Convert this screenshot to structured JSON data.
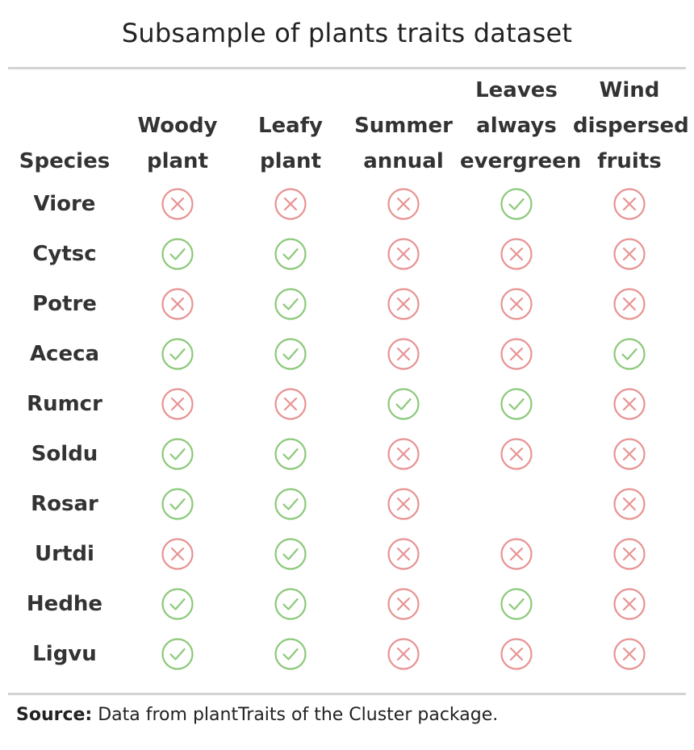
{
  "chart_data": {
    "type": "table",
    "title": "Subsample of plants traits dataset",
    "columns": [
      {
        "key": "species",
        "lines": [
          "Species"
        ]
      },
      {
        "key": "woody",
        "lines": [
          "Woody",
          "plant"
        ]
      },
      {
        "key": "leafy",
        "lines": [
          "Leafy",
          "plant"
        ]
      },
      {
        "key": "summer",
        "lines": [
          "Summer",
          "annual"
        ]
      },
      {
        "key": "evergreen",
        "lines": [
          "Leaves",
          "always",
          "evergreen"
        ]
      },
      {
        "key": "wind",
        "lines": [
          "Wind",
          "dispersed",
          "fruits"
        ]
      }
    ],
    "rows": [
      {
        "species": "Viore",
        "values": [
          false,
          false,
          false,
          true,
          false
        ]
      },
      {
        "species": "Cytsc",
        "values": [
          true,
          true,
          false,
          false,
          false
        ]
      },
      {
        "species": "Potre",
        "values": [
          false,
          true,
          false,
          false,
          false
        ]
      },
      {
        "species": "Aceca",
        "values": [
          true,
          true,
          false,
          false,
          true
        ]
      },
      {
        "species": "Rumcr",
        "values": [
          false,
          false,
          true,
          true,
          false
        ]
      },
      {
        "species": "Soldu",
        "values": [
          true,
          true,
          false,
          false,
          false
        ]
      },
      {
        "species": "Rosar",
        "values": [
          true,
          true,
          false,
          null,
          false
        ]
      },
      {
        "species": "Urtdi",
        "values": [
          false,
          true,
          false,
          false,
          false
        ]
      },
      {
        "species": "Hedhe",
        "values": [
          true,
          true,
          false,
          true,
          false
        ]
      },
      {
        "species": "Ligvu",
        "values": [
          true,
          true,
          false,
          false,
          false
        ]
      }
    ],
    "source_label": "Source:",
    "source_text": " Data from plantTraits of the Cluster package.",
    "colors": {
      "yes": "#8cc97a",
      "no": "#e89393"
    },
    "icons": {
      "yes": "check-circle-icon",
      "no": "x-circle-icon"
    }
  }
}
